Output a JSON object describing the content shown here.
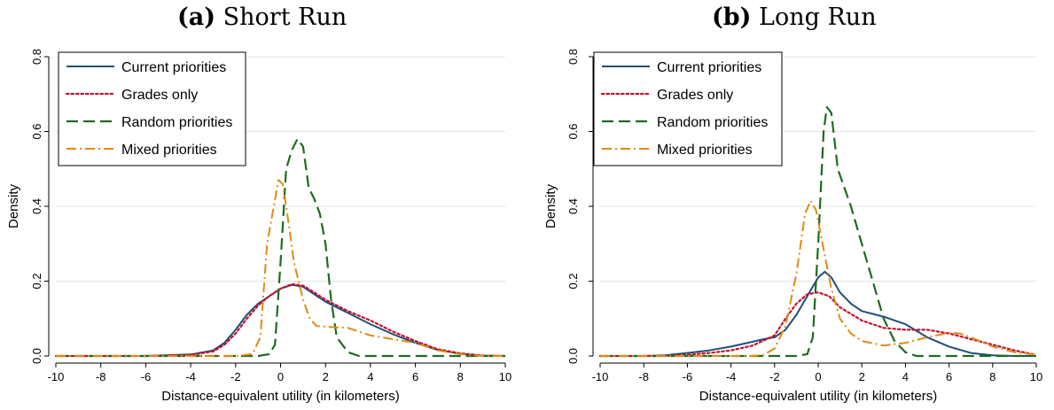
{
  "panels": [
    {
      "tag": "(a)",
      "title": "Short Run"
    },
    {
      "tag": "(b)",
      "title": "Long Run"
    }
  ],
  "colors": {
    "current": "#1f4e79",
    "grades": "#c8102e",
    "random": "#1e6b1e",
    "mixed": "#e08a12",
    "grid": "#e3e3e3"
  },
  "chart_data": [
    {
      "type": "line",
      "title": "(a) Short Run",
      "xlabel": "Distance-equivalent utility (in kilometers)",
      "ylabel": "Density",
      "xlim": [
        -10,
        10
      ],
      "ylim": [
        0,
        0.8
      ],
      "xticks": [
        -10,
        -8,
        -6,
        -4,
        -2,
        0,
        2,
        4,
        6,
        8,
        10
      ],
      "yticks": [
        0.0,
        0.2,
        0.4,
        0.6,
        0.8
      ],
      "ytick_labels": [
        "0.0",
        "0.2",
        "0.4",
        "0.6",
        "0.8"
      ],
      "grid": true,
      "legend_position": "top-left",
      "series": [
        {
          "name": "Current priorities",
          "style": "solid",
          "color_key": "current",
          "points": [
            [
              -10,
              0
            ],
            [
              -6,
              0
            ],
            [
              -4,
              0.004
            ],
            [
              -3,
              0.015
            ],
            [
              -2.5,
              0.035
            ],
            [
              -2,
              0.07
            ],
            [
              -1.5,
              0.11
            ],
            [
              -1,
              0.14
            ],
            [
              -0.5,
              0.16
            ],
            [
              0,
              0.18
            ],
            [
              0.5,
              0.19
            ],
            [
              1,
              0.185
            ],
            [
              1.5,
              0.165
            ],
            [
              2,
              0.145
            ],
            [
              3,
              0.115
            ],
            [
              4,
              0.085
            ],
            [
              5,
              0.058
            ],
            [
              6,
              0.035
            ],
            [
              7,
              0.016
            ],
            [
              8,
              0.006
            ],
            [
              9,
              0.001
            ],
            [
              10,
              0
            ]
          ]
        },
        {
          "name": "Grades only",
          "style": "dotted",
          "color_key": "grades",
          "points": [
            [
              -10,
              0
            ],
            [
              -6,
              0
            ],
            [
              -4,
              0.003
            ],
            [
              -3,
              0.012
            ],
            [
              -2.5,
              0.03
            ],
            [
              -2,
              0.06
            ],
            [
              -1.5,
              0.1
            ],
            [
              -1,
              0.135
            ],
            [
              -0.5,
              0.16
            ],
            [
              0,
              0.18
            ],
            [
              0.5,
              0.192
            ],
            [
              1,
              0.188
            ],
            [
              1.5,
              0.17
            ],
            [
              2,
              0.15
            ],
            [
              3,
              0.12
            ],
            [
              4,
              0.095
            ],
            [
              5,
              0.065
            ],
            [
              6,
              0.04
            ],
            [
              7,
              0.018
            ],
            [
              8,
              0.007
            ],
            [
              9,
              0.001
            ],
            [
              10,
              0
            ]
          ]
        },
        {
          "name": "Random priorities",
          "style": "longdash",
          "color_key": "random",
          "points": [
            [
              -10,
              0
            ],
            [
              -1,
              0
            ],
            [
              -0.5,
              0.005
            ],
            [
              -0.25,
              0.03
            ],
            [
              0,
              0.25
            ],
            [
              0.25,
              0.5
            ],
            [
              0.5,
              0.55
            ],
            [
              0.75,
              0.58
            ],
            [
              1,
              0.56
            ],
            [
              1.25,
              0.45
            ],
            [
              1.5,
              0.42
            ],
            [
              1.75,
              0.38
            ],
            [
              2,
              0.3
            ],
            [
              2.25,
              0.15
            ],
            [
              2.5,
              0.05
            ],
            [
              3,
              0.01
            ],
            [
              3.5,
              0
            ],
            [
              10,
              0
            ]
          ]
        },
        {
          "name": "Mixed priorities",
          "style": "dashdot",
          "color_key": "mixed",
          "points": [
            [
              -10,
              0
            ],
            [
              -2,
              0
            ],
            [
              -1.25,
              0.005
            ],
            [
              -0.9,
              0.05
            ],
            [
              -0.6,
              0.3
            ],
            [
              -0.3,
              0.4
            ],
            [
              -0.1,
              0.47
            ],
            [
              0.1,
              0.46
            ],
            [
              0.3,
              0.38
            ],
            [
              0.6,
              0.25
            ],
            [
              1,
              0.15
            ],
            [
              1.3,
              0.1
            ],
            [
              1.6,
              0.08
            ],
            [
              2,
              0.078
            ],
            [
              3,
              0.075
            ],
            [
              4,
              0.055
            ],
            [
              5,
              0.045
            ],
            [
              6,
              0.035
            ],
            [
              7,
              0.015
            ],
            [
              8,
              0.005
            ],
            [
              9,
              0
            ],
            [
              10,
              0
            ]
          ]
        }
      ]
    },
    {
      "type": "line",
      "title": "(b) Long Run",
      "xlabel": "Distance-equivalent utility (in kilometers)",
      "ylabel": "Density",
      "xlim": [
        -10,
        10
      ],
      "ylim": [
        0,
        0.8
      ],
      "xticks": [
        -10,
        -8,
        -6,
        -4,
        -2,
        0,
        2,
        4,
        6,
        8,
        10
      ],
      "yticks": [
        0.0,
        0.2,
        0.4,
        0.6,
        0.8
      ],
      "ytick_labels": [
        "0.0",
        "0.2",
        "0.4",
        "0.6",
        "0.8"
      ],
      "grid": true,
      "legend_position": "top-left",
      "series": [
        {
          "name": "Current priorities",
          "style": "solid",
          "color_key": "current",
          "points": [
            [
              -10,
              0
            ],
            [
              -8,
              0
            ],
            [
              -7,
              0.002
            ],
            [
              -6,
              0.008
            ],
            [
              -5,
              0.015
            ],
            [
              -4,
              0.025
            ],
            [
              -3,
              0.038
            ],
            [
              -2.5,
              0.045
            ],
            [
              -2,
              0.05
            ],
            [
              -1.5,
              0.07
            ],
            [
              -1,
              0.11
            ],
            [
              -0.5,
              0.16
            ],
            [
              0,
              0.21
            ],
            [
              0.3,
              0.225
            ],
            [
              0.6,
              0.21
            ],
            [
              1,
              0.17
            ],
            [
              1.5,
              0.14
            ],
            [
              2,
              0.12
            ],
            [
              3,
              0.105
            ],
            [
              4,
              0.085
            ],
            [
              5,
              0.05
            ],
            [
              6,
              0.025
            ],
            [
              7,
              0.008
            ],
            [
              8,
              0.002
            ],
            [
              9,
              0
            ],
            [
              10,
              0
            ]
          ]
        },
        {
          "name": "Grades only",
          "style": "dotted",
          "color_key": "grades",
          "points": [
            [
              -10,
              0
            ],
            [
              -7,
              0
            ],
            [
              -6,
              0.003
            ],
            [
              -5,
              0.008
            ],
            [
              -4,
              0.015
            ],
            [
              -3,
              0.028
            ],
            [
              -2,
              0.055
            ],
            [
              -1.5,
              0.1
            ],
            [
              -1,
              0.14
            ],
            [
              -0.5,
              0.165
            ],
            [
              0,
              0.17
            ],
            [
              0.5,
              0.16
            ],
            [
              1,
              0.13
            ],
            [
              2,
              0.095
            ],
            [
              3,
              0.075
            ],
            [
              4,
              0.07
            ],
            [
              5,
              0.07
            ],
            [
              6,
              0.06
            ],
            [
              7,
              0.045
            ],
            [
              8,
              0.03
            ],
            [
              9,
              0.015
            ],
            [
              10,
              0.003
            ]
          ]
        },
        {
          "name": "Random priorities",
          "style": "longdash",
          "color_key": "random",
          "points": [
            [
              -10,
              0
            ],
            [
              -1,
              0
            ],
            [
              -0.5,
              0.005
            ],
            [
              -0.25,
              0.05
            ],
            [
              0,
              0.3
            ],
            [
              0.25,
              0.6
            ],
            [
              0.4,
              0.665
            ],
            [
              0.6,
              0.65
            ],
            [
              0.9,
              0.5
            ],
            [
              1.2,
              0.45
            ],
            [
              1.5,
              0.4
            ],
            [
              2,
              0.3
            ],
            [
              2.5,
              0.2
            ],
            [
              3,
              0.1
            ],
            [
              3.5,
              0.04
            ],
            [
              4,
              0.01
            ],
            [
              4.5,
              0
            ],
            [
              10,
              0
            ]
          ]
        },
        {
          "name": "Mixed priorities",
          "style": "dashdot",
          "color_key": "mixed",
          "points": [
            [
              -10,
              0
            ],
            [
              -3,
              0
            ],
            [
              -2.5,
              0.003
            ],
            [
              -2,
              0.02
            ],
            [
              -1.5,
              0.08
            ],
            [
              -1,
              0.22
            ],
            [
              -0.6,
              0.38
            ],
            [
              -0.35,
              0.415
            ],
            [
              -0.1,
              0.39
            ],
            [
              0.2,
              0.3
            ],
            [
              0.6,
              0.18
            ],
            [
              1,
              0.1
            ],
            [
              1.5,
              0.06
            ],
            [
              2,
              0.04
            ],
            [
              3,
              0.028
            ],
            [
              4,
              0.035
            ],
            [
              5,
              0.05
            ],
            [
              6,
              0.062
            ],
            [
              6.5,
              0.06
            ],
            [
              7,
              0.05
            ],
            [
              8,
              0.025
            ],
            [
              9,
              0.01
            ],
            [
              10,
              0.003
            ]
          ]
        }
      ]
    }
  ]
}
